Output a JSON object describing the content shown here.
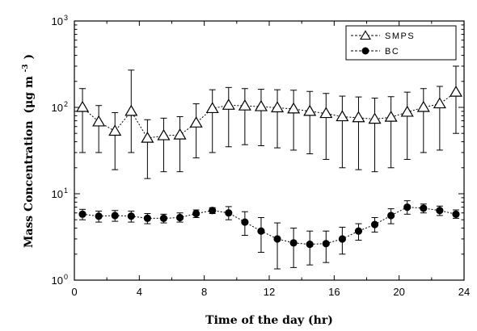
{
  "chart_data": {
    "type": "scatter",
    "title": "",
    "xlabel": "Time of the day (hr)",
    "ylabel": "Mass Concentration",
    "ylabel_unit_base": "(μg m",
    "ylabel_unit_exp": "-3",
    "ylabel_unit_close": ")",
    "xlim": [
      0,
      24
    ],
    "ylim": [
      1,
      1000
    ],
    "yscale": "log",
    "x_ticks": [
      "0",
      "4",
      "8",
      "12",
      "16",
      "20",
      "24"
    ],
    "y_ticks": [
      {
        "base": "10",
        "exp": "0"
      },
      {
        "base": "10",
        "exp": "1"
      },
      {
        "base": "10",
        "exp": "2"
      },
      {
        "base": "10",
        "exp": "3"
      }
    ],
    "legend_position": "top-right",
    "series": [
      {
        "name": "SMPS",
        "marker": "open-triangle",
        "color": "#000000",
        "points": [
          {
            "x": 0.5,
            "y": 100,
            "lo": 30,
            "hi": 165
          },
          {
            "x": 1.5,
            "y": 68,
            "lo": 30,
            "hi": 105
          },
          {
            "x": 2.5,
            "y": 53,
            "lo": 19,
            "hi": 87
          },
          {
            "x": 3.5,
            "y": 90,
            "lo": 30,
            "hi": 270
          },
          {
            "x": 4.5,
            "y": 44,
            "lo": 15,
            "hi": 72
          },
          {
            "x": 5.5,
            "y": 47,
            "lo": 18,
            "hi": 75
          },
          {
            "x": 6.5,
            "y": 48,
            "lo": 18,
            "hi": 78
          },
          {
            "x": 7.5,
            "y": 66,
            "lo": 26,
            "hi": 110
          },
          {
            "x": 8.5,
            "y": 97,
            "lo": 30,
            "hi": 160
          },
          {
            "x": 9.5,
            "y": 106,
            "lo": 35,
            "hi": 170
          },
          {
            "x": 10.5,
            "y": 104,
            "lo": 37,
            "hi": 165
          },
          {
            "x": 11.5,
            "y": 102,
            "lo": 36,
            "hi": 162
          },
          {
            "x": 12.5,
            "y": 99,
            "lo": 34,
            "hi": 160
          },
          {
            "x": 13.5,
            "y": 96,
            "lo": 32,
            "hi": 158
          },
          {
            "x": 14.5,
            "y": 90,
            "lo": 29,
            "hi": 153
          },
          {
            "x": 15.5,
            "y": 85,
            "lo": 25,
            "hi": 145
          },
          {
            "x": 16.5,
            "y": 78,
            "lo": 20,
            "hi": 135
          },
          {
            "x": 17.5,
            "y": 76,
            "lo": 19,
            "hi": 132
          },
          {
            "x": 18.5,
            "y": 73,
            "lo": 18,
            "hi": 128
          },
          {
            "x": 19.5,
            "y": 77,
            "lo": 20,
            "hi": 133
          },
          {
            "x": 20.5,
            "y": 88,
            "lo": 25,
            "hi": 150
          },
          {
            "x": 21.5,
            "y": 100,
            "lo": 30,
            "hi": 165
          },
          {
            "x": 22.5,
            "y": 110,
            "lo": 32,
            "hi": 175
          },
          {
            "x": 23.5,
            "y": 150,
            "lo": 50,
            "hi": 300
          }
        ]
      },
      {
        "name": "BC",
        "marker": "filled-circle",
        "color": "#000000",
        "points": [
          {
            "x": 0.5,
            "y": 5.8,
            "lo": 5.0,
            "hi": 6.6
          },
          {
            "x": 1.5,
            "y": 5.5,
            "lo": 4.7,
            "hi": 6.3
          },
          {
            "x": 2.5,
            "y": 5.6,
            "lo": 4.8,
            "hi": 6.4
          },
          {
            "x": 3.5,
            "y": 5.5,
            "lo": 4.7,
            "hi": 6.3
          },
          {
            "x": 4.5,
            "y": 5.2,
            "lo": 4.5,
            "hi": 5.9
          },
          {
            "x": 5.5,
            "y": 5.2,
            "lo": 4.6,
            "hi": 5.8
          },
          {
            "x": 6.5,
            "y": 5.3,
            "lo": 4.7,
            "hi": 6.0
          },
          {
            "x": 7.5,
            "y": 5.9,
            "lo": 5.3,
            "hi": 6.5
          },
          {
            "x": 8.5,
            "y": 6.4,
            "lo": 5.9,
            "hi": 6.9
          },
          {
            "x": 9.5,
            "y": 6.0,
            "lo": 5.0,
            "hi": 7.1
          },
          {
            "x": 10.5,
            "y": 4.7,
            "lo": 3.3,
            "hi": 6.2
          },
          {
            "x": 11.5,
            "y": 3.7,
            "lo": 2.1,
            "hi": 5.3
          },
          {
            "x": 12.5,
            "y": 3.0,
            "lo": 1.35,
            "hi": 4.6
          },
          {
            "x": 13.5,
            "y": 2.7,
            "lo": 1.4,
            "hi": 4.0
          },
          {
            "x": 14.5,
            "y": 2.6,
            "lo": 1.5,
            "hi": 3.7
          },
          {
            "x": 15.5,
            "y": 2.65,
            "lo": 1.6,
            "hi": 3.7
          },
          {
            "x": 16.5,
            "y": 3.0,
            "lo": 2.0,
            "hi": 4.1
          },
          {
            "x": 17.5,
            "y": 3.7,
            "lo": 2.9,
            "hi": 4.5
          },
          {
            "x": 18.5,
            "y": 4.4,
            "lo": 3.6,
            "hi": 5.3
          },
          {
            "x": 19.5,
            "y": 5.6,
            "lo": 4.5,
            "hi": 6.7
          },
          {
            "x": 20.5,
            "y": 7.0,
            "lo": 5.8,
            "hi": 8.3
          },
          {
            "x": 21.5,
            "y": 6.8,
            "lo": 6.0,
            "hi": 7.6
          },
          {
            "x": 22.5,
            "y": 6.4,
            "lo": 5.6,
            "hi": 7.2
          },
          {
            "x": 23.5,
            "y": 5.8,
            "lo": 5.2,
            "hi": 6.5
          }
        ]
      }
    ]
  }
}
